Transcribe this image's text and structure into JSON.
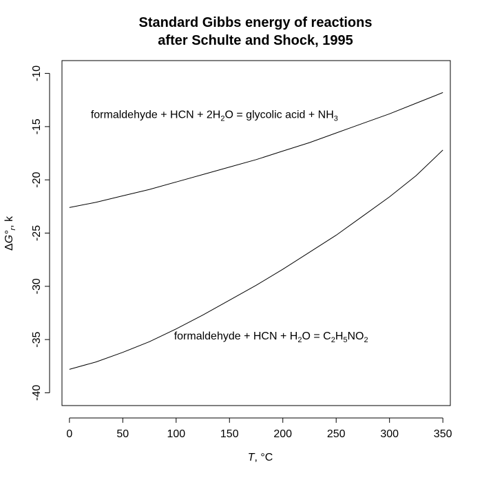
{
  "chart_data": {
    "type": "line",
    "title": "Standard Gibbs energy of reactions",
    "subtitle": "after Schulte and Shock, 1995",
    "xlabel": {
      "symbol": "T",
      "unit": ", °C"
    },
    "ylabel": {
      "prefix": "Δ",
      "symbol": "G°",
      "subscript": "r",
      "unit": ", k"
    },
    "xlim": [
      -7,
      357
    ],
    "ylim": [
      -41.2,
      -8.8
    ],
    "xticks": [
      0,
      50,
      100,
      150,
      200,
      250,
      300,
      350
    ],
    "yticks": [
      -40,
      -35,
      -30,
      -25,
      -20,
      -15,
      -10
    ],
    "xtick_labels": [
      "0",
      "50",
      "100",
      "150",
      "200",
      "250",
      "300",
      "350"
    ],
    "ytick_labels": [
      "-40",
      "-35",
      "-30",
      "-25",
      "-20",
      "-15",
      "-10"
    ],
    "grid": false,
    "series": [
      {
        "x": [
          0,
          25,
          50,
          75,
          100,
          125,
          150,
          175,
          200,
          225,
          250,
          275,
          300,
          325,
          350
        ],
        "y": [
          -22.6,
          -22.1,
          -21.5,
          -20.9,
          -20.2,
          -19.5,
          -18.8,
          -18.1,
          -17.3,
          -16.5,
          -15.6,
          -14.7,
          -13.8,
          -12.8,
          -11.8
        ]
      },
      {
        "x": [
          0,
          25,
          50,
          75,
          100,
          125,
          150,
          175,
          200,
          225,
          250,
          275,
          300,
          325,
          350
        ],
        "y": [
          -37.8,
          -37.1,
          -36.2,
          -35.2,
          -34.0,
          -32.7,
          -31.3,
          -29.9,
          -28.4,
          -26.8,
          -25.2,
          -23.4,
          -21.6,
          -19.6,
          -17.2
        ]
      }
    ],
    "annotations": [
      {
        "x": 20,
        "y": -14.2,
        "parts": [
          {
            "t": "formaldehyde + HCN + 2H"
          },
          {
            "t": "2",
            "sub": true
          },
          {
            "t": "O = glycolic acid + NH"
          },
          {
            "t": "3",
            "sub": true
          }
        ]
      },
      {
        "x": 98,
        "y": -35.0,
        "parts": [
          {
            "t": "formaldehyde + HCN + H"
          },
          {
            "t": "2",
            "sub": true
          },
          {
            "t": "O = C"
          },
          {
            "t": "2",
            "sub": true
          },
          {
            "t": "H"
          },
          {
            "t": "5",
            "sub": true
          },
          {
            "t": "NO"
          },
          {
            "t": "2",
            "sub": true
          }
        ]
      }
    ]
  }
}
